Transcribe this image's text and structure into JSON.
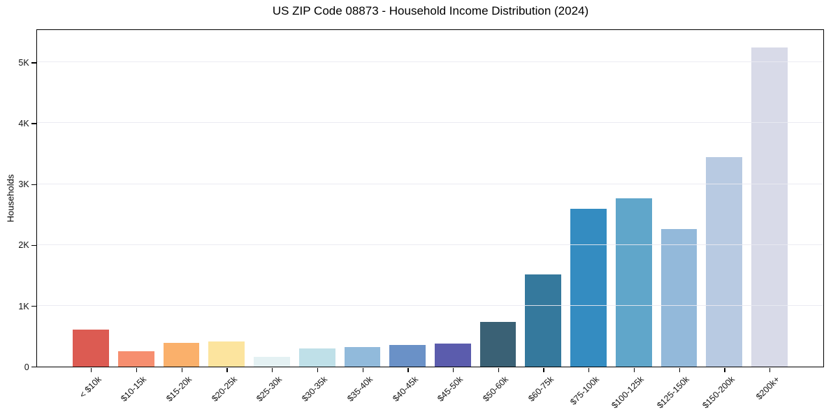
{
  "window": {
    "title": "US ZIP Code 08873 - Household Income Distribution (2024)"
  },
  "chart_data": {
    "type": "bar",
    "title": "US ZIP Code 08873 - Household Income Distribution (2024)",
    "xlabel": "",
    "ylabel": "Households",
    "categories": [
      "< $10k",
      "$10-15k",
      "$15-20k",
      "$20-25k",
      "$25-30k",
      "$30-35k",
      "$35-40k",
      "$40-45k",
      "$45-50k",
      "$50-60k",
      "$60-75k",
      "$75-100k",
      "$100-125k",
      "$125-150k",
      "$150-200k",
      "$200k+"
    ],
    "values": [
      610,
      250,
      385,
      410,
      160,
      300,
      320,
      355,
      375,
      740,
      1520,
      2595,
      2765,
      2260,
      3445,
      5240
    ],
    "bar_colors": [
      "#DC5B52",
      "#F68E6F",
      "#FAB06B",
      "#FCE49E",
      "#E4F1F3",
      "#BFE0E8",
      "#91BADB",
      "#6A91C7",
      "#5B5CAD",
      "#3A6175",
      "#35799D",
      "#348CC1",
      "#60A6CA",
      "#93B9DA",
      "#B8CAE2",
      "#D8DAE8"
    ],
    "ylim": [
      0,
      5530
    ],
    "yticks": {
      "values": [
        0,
        1000,
        2000,
        3000,
        4000,
        5000
      ],
      "labels": [
        "0",
        "1K",
        "2K",
        "3K",
        "4K",
        "5K"
      ]
    },
    "grid": "horizontal-drawn-above-bars",
    "legend_position": "none",
    "bar_width_fraction": 0.8,
    "x_tick_rotation_deg": 45,
    "colors": {
      "axis": "#000000",
      "gridline": "#e9e9f1",
      "text": "#111111",
      "background": "#ffffff"
    }
  }
}
